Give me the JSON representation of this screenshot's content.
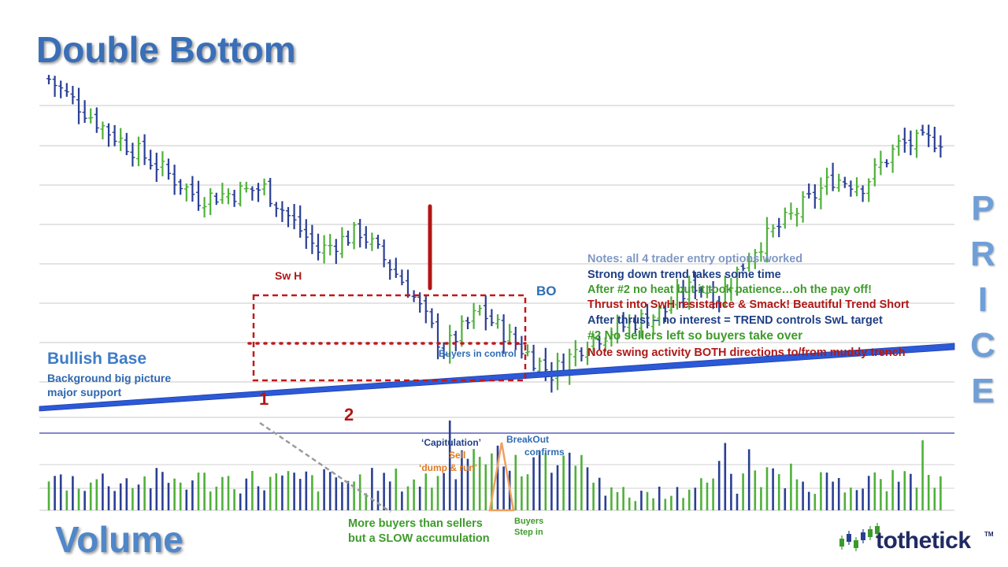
{
  "title": "Double Bottom",
  "volume_title": "Volume",
  "price_label": [
    "P",
    "R",
    "I",
    "C",
    "E"
  ],
  "bullish_base": {
    "title": "Bullish Base",
    "line1": "Background big picture",
    "line2": "major support"
  },
  "swing_labels": {
    "swh": "Sw H",
    "bottom1": "1",
    "bottom2": "2",
    "bo": "BO",
    "buyers_in_control": "Buyers in control"
  },
  "notes": [
    {
      "text": "Notes: all 4 trader entry options worked",
      "color": "#7f98c4"
    },
    {
      "text": "Strong down trend takes some time",
      "color": "#1f3f86"
    },
    {
      "text": "After #2  no heat but it took patience…oh the pay off!",
      "color": "#3f9b2c"
    },
    {
      "text": "Thrust into SwH resistance & Smack! Beautiful Trend Short",
      "color": "#b01818"
    },
    {
      "text": "After thrust – no interest = TREND controls SwL target",
      "color": "#1f3f86"
    },
    {
      "text": "#2 No sellers left so buyers take over",
      "color": "#3f9b2c"
    },
    {
      "text": "Note swing activity BOTH directions to/from muddy trench",
      "color": "#b01818"
    }
  ],
  "volume_annotations": {
    "capitulation": "‘Capitulation’",
    "sell": "Sell",
    "dump_run": "‘dump & run’",
    "breakout": "BreakOut",
    "confirms": "confirms",
    "buyers_step": "Buyers",
    "step_in": "Step in",
    "more_buyers": "More buyers than sellers",
    "slow_accum": "but a SLOW accumulation"
  },
  "logo": {
    "text": "tothetick",
    "tm": "TM"
  },
  "colors": {
    "up_bar": "#4fb03a",
    "down_bar": "#2a3f94",
    "box": "#c0191a",
    "trendline": "#2c59d8",
    "title": "#3a6fb7"
  },
  "chart_data": {
    "type": "bar",
    "description_series": "OHLC price bars (relative price units 0-100) with volume histogram",
    "price_bars": {
      "n": 150,
      "close_path_anchors": [
        {
          "bar": 0,
          "price": 98
        },
        {
          "bar": 10,
          "price": 82
        },
        {
          "bar": 18,
          "price": 72
        },
        {
          "bar": 25,
          "price": 62
        },
        {
          "bar": 36,
          "price": 65
        },
        {
          "bar": 45,
          "price": 46
        },
        {
          "bar": 52,
          "price": 52
        },
        {
          "bar": 60,
          "price": 35
        },
        {
          "bar": 66,
          "price": 16
        },
        {
          "bar": 72,
          "price": 28
        },
        {
          "bar": 78,
          "price": 18
        },
        {
          "bar": 84,
          "price": 9
        },
        {
          "bar": 90,
          "price": 19
        },
        {
          "bar": 97,
          "price": 24
        },
        {
          "bar": 103,
          "price": 28
        },
        {
          "bar": 108,
          "price": 36
        },
        {
          "bar": 112,
          "price": 32
        },
        {
          "bar": 118,
          "price": 47
        },
        {
          "bar": 125,
          "price": 58
        },
        {
          "bar": 131,
          "price": 68
        },
        {
          "bar": 136,
          "price": 66
        },
        {
          "bar": 142,
          "price": 78
        },
        {
          "bar": 150,
          "price": 80
        }
      ]
    },
    "volume": {
      "baseline": 0,
      "peaks": [
        {
          "label": "bottom1",
          "value": 100
        },
        {
          "label": "capitulation",
          "value": 75
        },
        {
          "label": "breakout",
          "value": 68
        }
      ]
    },
    "grid": true
  }
}
